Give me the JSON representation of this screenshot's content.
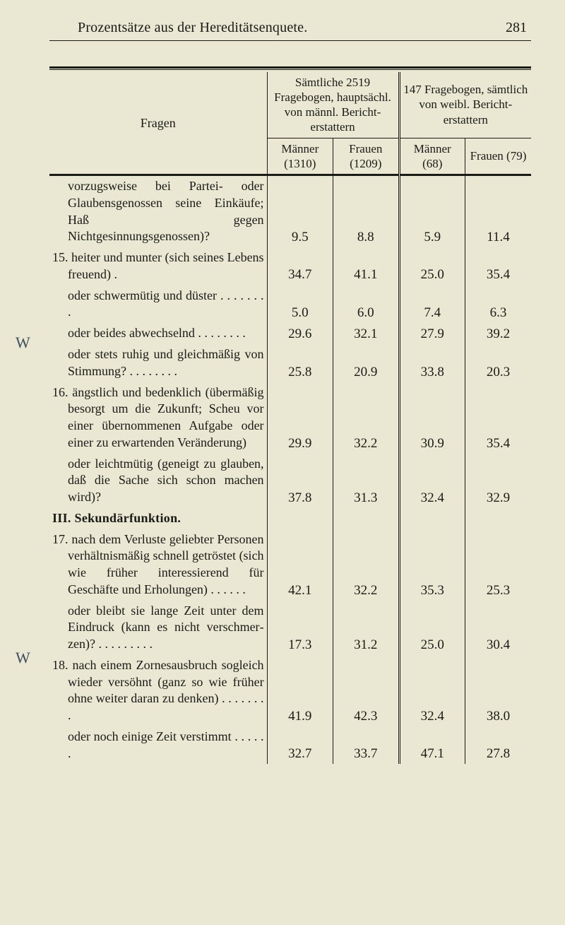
{
  "page": {
    "running_title": "Prozentsätze aus der Hereditätsenquete.",
    "number": "281"
  },
  "handwriting": {
    "mark1": "W",
    "mark2": "W"
  },
  "header": {
    "col_fragen": "Fragen",
    "group_a_top": "Sämtliche 2519 Fragebogen, hauptsächl. von männl. Bericht­erstattern",
    "group_b_top": "147 Fragebogen, sämtlich von weibl. Bericht­erstattern",
    "maenner_a": "Männer (1310)",
    "frauen_a": "Frauen (1209)",
    "maenner_b": "Männer (68)",
    "frauen_b": "Frauen (79)"
  },
  "rows": [
    {
      "q": "vorzugsweise bei Partei- oder Glaubensgenossen seine Einkäufe; Haß gegen Nichtgesinnungsgenossen)?",
      "a": "9.5",
      "b": "8.8",
      "c": "5.9",
      "d": "11.4",
      "indent": true
    },
    {
      "q": "15. heiter und munter (sich seines Lebens freuend) .",
      "a": "34.7",
      "b": "41.1",
      "c": "25.0",
      "d": "35.4",
      "hang": true
    },
    {
      "q": "oder schwermütig und düster . . . . . . . .",
      "a": "5.0",
      "b": "6.0",
      "c": "7.4",
      "d": "6.3",
      "indent": true
    },
    {
      "q": "oder beides abwech­selnd . . . . . . . .",
      "a": "29.6",
      "b": "32.1",
      "c": "27.9",
      "d": "39.2",
      "indent": true
    },
    {
      "q": "oder stets ruhig und gleichmäßig von Stim­mung? . . . . . . . .",
      "a": "25.8",
      "b": "20.9",
      "c": "33.8",
      "d": "20.3",
      "indent": true
    },
    {
      "q": "16. ängstlich und bedenk­lich (übermäßig besorgt um die Zukunft; Scheu vor einer übernommenen Aufgabe oder einer zu erwartenden Veränderung)",
      "a": "29.9",
      "b": "32.2",
      "c": "30.9",
      "d": "35.4",
      "hang": true
    },
    {
      "q": "oder leichtmütig (geneigt zu glauben, daß die Sache sich schon machen wird)?",
      "a": "37.8",
      "b": "31.3",
      "c": "32.4",
      "d": "32.9",
      "indent": true
    }
  ],
  "section3": {
    "title": "III. Sekundärfunktion."
  },
  "rows2": [
    {
      "q": "17. nach dem Verluste gelieb­ter Personen verhältnis­mäßig schnell getröstet (sich wie früher interes­sierend für Geschäfte und Erholungen) . . . . . .",
      "a": "42.1",
      "b": "32.2",
      "c": "35.3",
      "d": "25.3",
      "hang": true
    },
    {
      "q": "oder bleibt sie lange Zeit unter dem Eindruck (kann es nicht verschmer­zen)? . . . . . . . . .",
      "a": "17.3",
      "b": "31.2",
      "c": "25.0",
      "d": "30.4",
      "indent": true
    },
    {
      "q": "18. nach einem Zornesausbruch sogleich wieder ver­söhnt (ganz so wie früher ohne weiter daran zu denken) . . . . . . . .",
      "a": "41.9",
      "b": "42.3",
      "c": "32.4",
      "d": "38.0",
      "hang": true
    },
    {
      "q": "oder noch einige Zeit verstimmt . . . . . .",
      "a": "32.7",
      "b": "33.7",
      "c": "47.1",
      "d": "27.8",
      "indent": true
    }
  ]
}
